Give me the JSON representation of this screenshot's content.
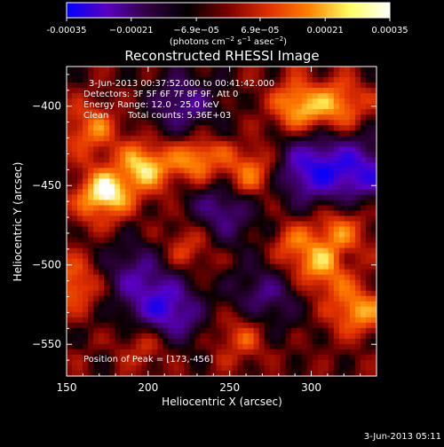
{
  "chart_data": {
    "type": "heatmap",
    "title": "Reconstructed RHESSI Image",
    "xlabel": "Heliocentric X (arcsec)",
    "ylabel": "Heliocentric Y (arcsec)",
    "xlim": [
      150,
      340
    ],
    "ylim": [
      -570,
      -375
    ],
    "x_ticks": [
      150,
      200,
      250,
      300
    ],
    "y_ticks": [
      -550,
      -500,
      -450,
      -400
    ],
    "colorbar": {
      "range": [
        -0.00035,
        0.00035
      ],
      "tick_values": [
        -0.00035,
        -0.00021,
        -6.9e-05,
        6.9e-05,
        0.00021,
        0.00035
      ],
      "tick_labels": [
        "-0.00035",
        "−0.00021",
        "−6.9e−05",
        "6.9e−05",
        "0.00021",
        "0.00035"
      ],
      "units_base": "(photons cm",
      "units_e1": "−2",
      "units_mid": " s",
      "units_e2": "−1",
      "units_tail": " asec",
      "units_e3": "−2",
      "units_close": ")",
      "colormap": [
        "#0000ff",
        "#5a00c0",
        "#300040",
        "#000000",
        "#7a0000",
        "#e03000",
        "#ff8000",
        "#ffff60",
        "#ffffff"
      ]
    },
    "annotations": {
      "time_range": "3-Jun-2013 00:37:52.000 to 00:41:42.000",
      "detectors": "Detectors: 3F 5F 6F 7F 8F 9F, Att 0",
      "energy": "Energy Range: 12.0 - 25.0 keV",
      "method": "Clean",
      "counts": "Total counts: 5.36E+03",
      "peak": "Position of Peak = [173,-456]"
    },
    "peak": [
      173,
      -456
    ],
    "bright_regions": [
      {
        "x": 173,
        "y": -456,
        "level": 1.0
      },
      {
        "x": 198,
        "y": -438,
        "level": 0.85
      },
      {
        "x": 230,
        "y": -433,
        "level": 0.78
      },
      {
        "x": 262,
        "y": -443,
        "level": 0.7
      },
      {
        "x": 292,
        "y": -400,
        "level": 0.82
      },
      {
        "x": 318,
        "y": -400,
        "level": 0.65
      },
      {
        "x": 165,
        "y": -415,
        "level": 0.6
      },
      {
        "x": 318,
        "y": -478,
        "level": 0.55
      },
      {
        "x": 327,
        "y": -528,
        "level": 0.7
      },
      {
        "x": 306,
        "y": -503,
        "level": 0.6
      },
      {
        "x": 156,
        "y": -512,
        "level": 0.6
      },
      {
        "x": 200,
        "y": -548,
        "level": 0.55
      },
      {
        "x": 258,
        "y": -545,
        "level": 0.5
      },
      {
        "x": 225,
        "y": -488,
        "level": 0.45
      },
      {
        "x": 290,
        "y": -488,
        "level": 0.5
      }
    ],
    "dark_regions": [
      {
        "x": 210,
        "y": -530,
        "level": 0.85
      },
      {
        "x": 300,
        "y": -440,
        "level": 0.8
      },
      {
        "x": 332,
        "y": -440,
        "level": 0.7
      },
      {
        "x": 245,
        "y": -465,
        "level": 0.55
      },
      {
        "x": 222,
        "y": -400,
        "level": 0.55
      },
      {
        "x": 272,
        "y": -520,
        "level": 0.5
      },
      {
        "x": 190,
        "y": -505,
        "level": 0.45
      }
    ]
  },
  "footer": {
    "timestamp": "3-Jun-2013 05:11"
  }
}
